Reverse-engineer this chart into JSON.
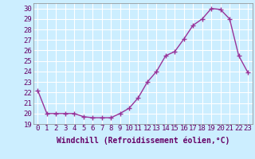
{
  "x": [
    0,
    1,
    2,
    3,
    4,
    5,
    6,
    7,
    8,
    9,
    10,
    11,
    12,
    13,
    14,
    15,
    16,
    17,
    18,
    19,
    20,
    21,
    22,
    23
  ],
  "y": [
    22.2,
    20.0,
    20.0,
    20.0,
    20.0,
    19.7,
    19.6,
    19.6,
    19.6,
    20.0,
    20.5,
    21.5,
    23.0,
    24.0,
    25.5,
    25.9,
    27.1,
    28.4,
    29.0,
    30.0,
    29.9,
    29.0,
    25.5,
    23.9
  ],
  "line_color": "#993399",
  "marker": "+",
  "marker_size": 4,
  "marker_lw": 1.0,
  "line_width": 1.0,
  "bg_color": "#cceeff",
  "grid_color": "#ffffff",
  "xlabel": "Windchill (Refroidissement éolien,°C)",
  "ylim": [
    19,
    30.5
  ],
  "xlim": [
    -0.5,
    23.5
  ],
  "yticks": [
    19,
    20,
    21,
    22,
    23,
    24,
    25,
    26,
    27,
    28,
    29,
    30
  ],
  "xtick_labels": [
    "0",
    "1",
    "2",
    "3",
    "4",
    "5",
    "6",
    "7",
    "8",
    "9",
    "10",
    "11",
    "12",
    "13",
    "14",
    "15",
    "16",
    "17",
    "18",
    "19",
    "20",
    "21",
    "22",
    "23"
  ],
  "label_fontsize": 7,
  "tick_fontsize": 6.5
}
